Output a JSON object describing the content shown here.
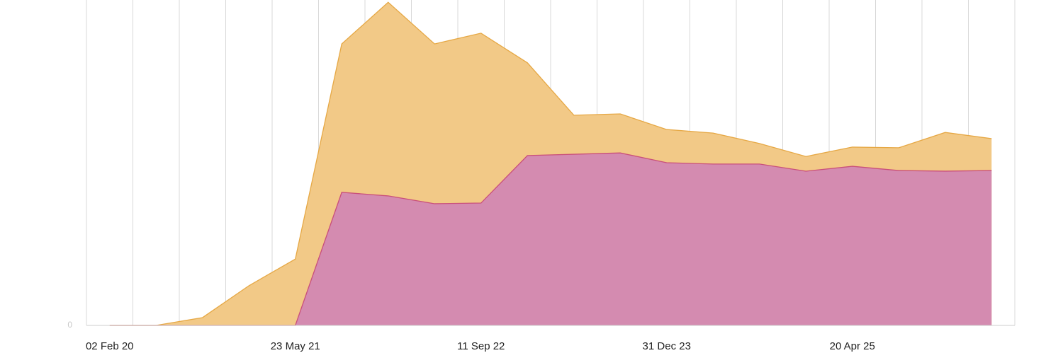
{
  "chart_data": {
    "type": "area",
    "categories": [
      "02 Feb 20",
      null,
      null,
      null,
      "23 May 21",
      null,
      null,
      null,
      "11 Sep 22",
      null,
      null,
      null,
      "31 Dec 23",
      null,
      null,
      null,
      "20 Apr 25",
      null,
      null,
      null
    ],
    "series": [
      {
        "color": "#f2c987",
        "line_color": "#e6a845",
        "values": [
          0,
          0,
          2.4,
          12.2,
          20.4,
          86.5,
          99.3,
          86.5,
          89.8,
          80.7,
          64.6,
          65.0,
          60.2,
          59.1,
          55.9,
          51.9,
          54.8,
          54.6,
          59.3,
          57.4
        ]
      },
      {
        "color": "#d48bb0",
        "line_color": "#c94f7a",
        "values": [
          0,
          0,
          0,
          0,
          0,
          40.9,
          39.8,
          37.4,
          37.6,
          52.2,
          52.6,
          53.0,
          50.0,
          49.6,
          49.6,
          47.4,
          48.9,
          47.6,
          47.4,
          47.6
        ]
      }
    ],
    "ylim": [
      0,
      100
    ],
    "yticks": [
      0
    ],
    "grid": true
  }
}
